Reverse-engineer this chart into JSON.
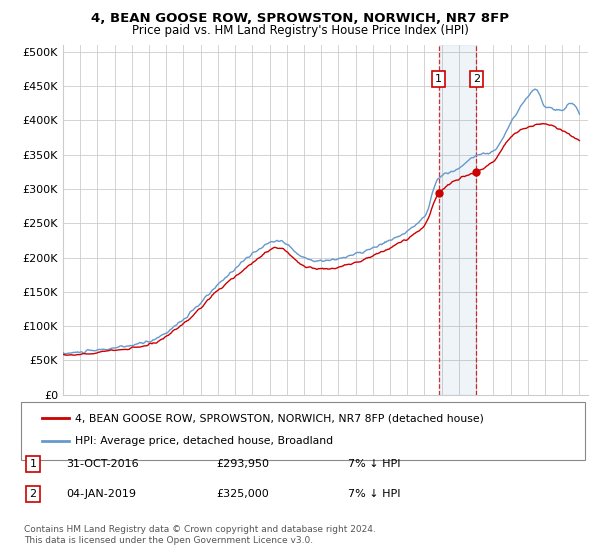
{
  "title1": "4, BEAN GOOSE ROW, SPROWSTON, NORWICH, NR7 8FP",
  "title2": "Price paid vs. HM Land Registry's House Price Index (HPI)",
  "ylabel_ticks": [
    "£0",
    "£50K",
    "£100K",
    "£150K",
    "£200K",
    "£250K",
    "£300K",
    "£350K",
    "£400K",
    "£450K",
    "£500K"
  ],
  "ytick_values": [
    0,
    50000,
    100000,
    150000,
    200000,
    250000,
    300000,
    350000,
    400000,
    450000,
    500000
  ],
  "ylim": [
    0,
    510000
  ],
  "xlim_start": 1995.0,
  "xlim_end": 2025.5,
  "sale1_date": 2016.83,
  "sale1_price": 293950,
  "sale2_date": 2019.01,
  "sale2_price": 325000,
  "legend_line1": "4, BEAN GOOSE ROW, SPROWSTON, NORWICH, NR7 8FP (detached house)",
  "legend_line2": "HPI: Average price, detached house, Broadland",
  "annotation1_date": "31-OCT-2016",
  "annotation1_price": "£293,950",
  "annotation1_hpi": "7% ↓ HPI",
  "annotation2_date": "04-JAN-2019",
  "annotation2_price": "£325,000",
  "annotation2_hpi": "7% ↓ HPI",
  "footer": "Contains HM Land Registry data © Crown copyright and database right 2024.\nThis data is licensed under the Open Government Licence v3.0.",
  "line_color_price": "#cc0000",
  "line_color_hpi": "#6699cc",
  "grid_color": "#cccccc",
  "background_color": "#ffffff"
}
